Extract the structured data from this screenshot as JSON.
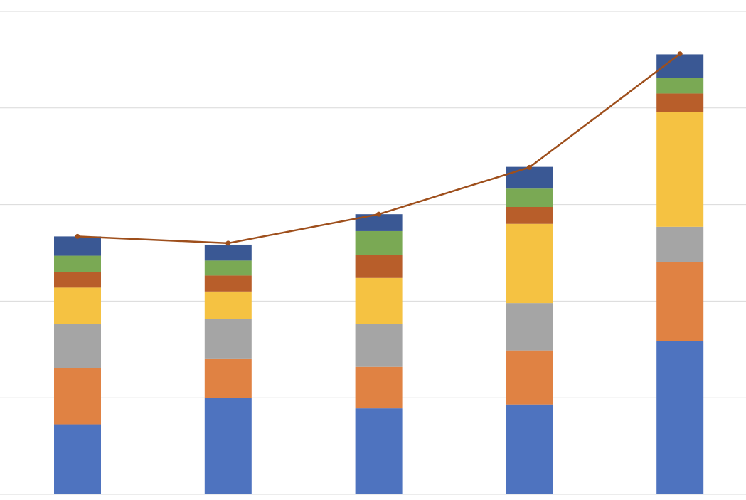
{
  "chart_data": {
    "type": "bar",
    "stacked": true,
    "grid": true,
    "ylim": [
      0,
      100
    ],
    "categories": [
      "",
      "",
      "",
      "",
      ""
    ],
    "series": [
      {
        "values": [
          14.5,
          20.0,
          17.8,
          18.6,
          31.8
        ],
        "color": "#4e73bf"
      },
      {
        "values": [
          11.7,
          8.0,
          8.6,
          11.2,
          16.3
        ],
        "color": "#e08243"
      },
      {
        "values": [
          9.0,
          8.3,
          8.9,
          9.8,
          7.3
        ],
        "color": "#a5a5a5"
      },
      {
        "values": [
          7.6,
          5.7,
          9.5,
          16.4,
          23.8
        ],
        "color": "#f5c242"
      },
      {
        "values": [
          3.2,
          3.3,
          4.7,
          3.5,
          3.8
        ],
        "color": "#b85e2a"
      },
      {
        "values": [
          3.4,
          3.1,
          5.0,
          3.8,
          3.2
        ],
        "color": "#7aa954"
      },
      {
        "values": [
          4.0,
          3.3,
          3.5,
          4.5,
          4.9
        ],
        "color": "#3a5894"
      }
    ],
    "line": {
      "values": [
        53.4,
        52.0,
        58.0,
        67.7,
        91.2
      ],
      "color": "#9e4f1c"
    }
  }
}
